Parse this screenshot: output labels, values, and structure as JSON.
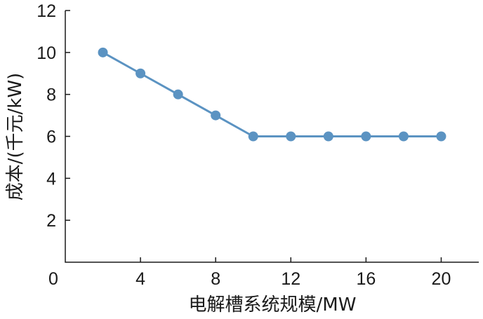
{
  "chart_data": {
    "type": "line",
    "xlabel": "电解槽系统规模/MW",
    "ylabel": "成本/(千元/kW)",
    "x_ticks": [
      "0",
      "4",
      "8",
      "12",
      "16",
      "20"
    ],
    "y_ticks": [
      "2",
      "4",
      "6",
      "8",
      "10",
      "12"
    ],
    "xlim": [
      0,
      22
    ],
    "ylim": [
      0,
      12
    ],
    "grid": false,
    "legend": "none",
    "series": [
      {
        "color": "#5b93c2",
        "x": [
          2,
          4,
          6,
          8,
          10,
          12,
          14,
          16,
          18,
          20
        ],
        "y": [
          10,
          9,
          8,
          7,
          6,
          6,
          6,
          6,
          6,
          6
        ]
      }
    ]
  }
}
